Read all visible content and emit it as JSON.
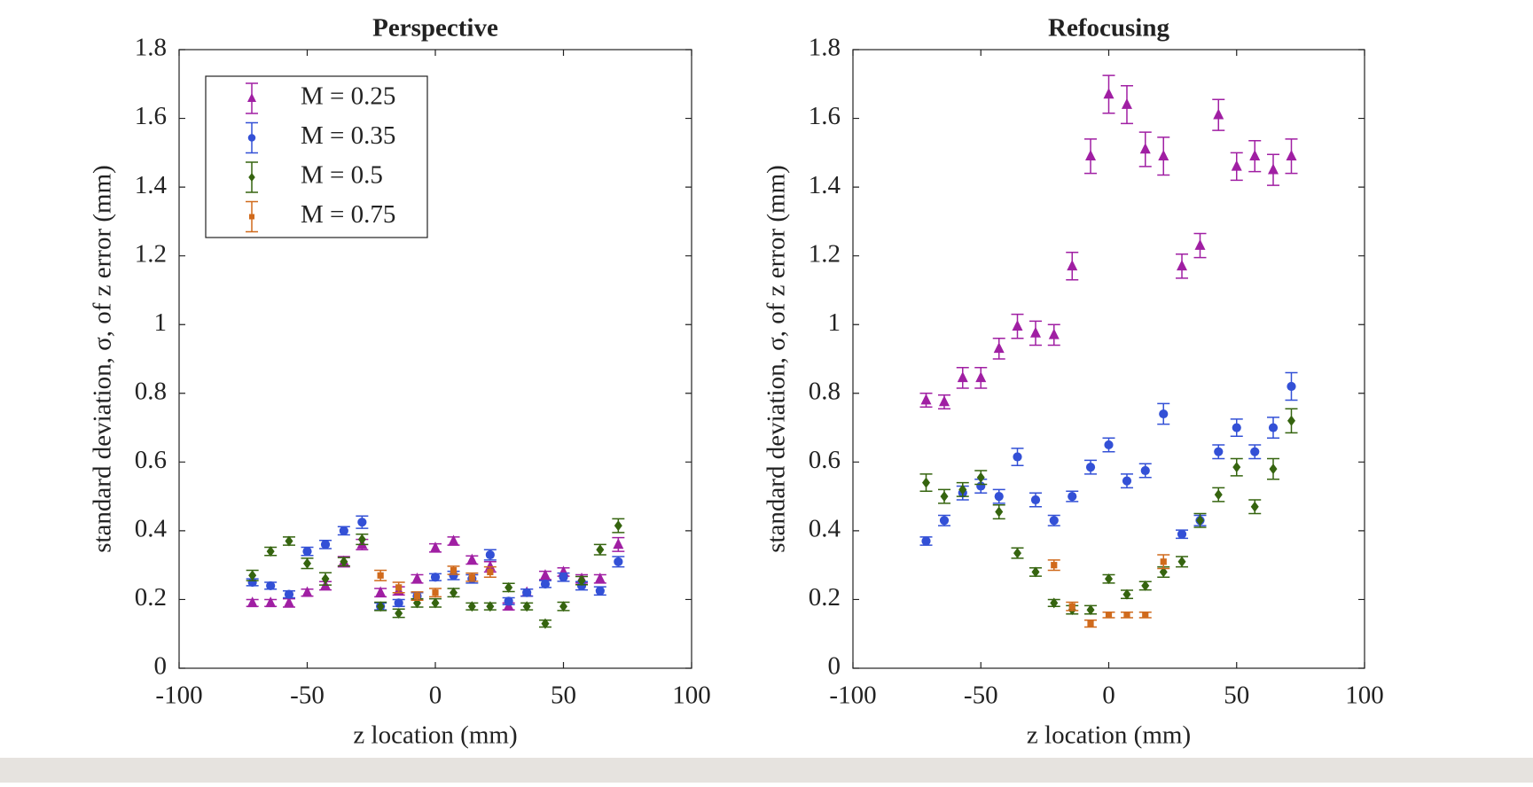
{
  "chart_data": [
    {
      "type": "errorbar",
      "title": "Perspective",
      "xlabel": "z location (mm)",
      "ylabel": "standard deviation, σ, of z error (mm)",
      "xlim": [
        -100,
        100
      ],
      "xticks": [
        -100,
        -50,
        0,
        50,
        100
      ],
      "ylim": [
        0,
        1.8
      ],
      "yticks": [
        0,
        0.2,
        0.4,
        0.6,
        0.8,
        1,
        1.2,
        1.4,
        1.6,
        1.8
      ],
      "legend": "upper left",
      "x": [
        -71.4,
        -64.3,
        -57.1,
        -50,
        -42.9,
        -35.7,
        -28.6,
        -21.4,
        -14.3,
        -7.1,
        0,
        7.1,
        14.3,
        21.4,
        28.6,
        35.7,
        42.9,
        50,
        57.1,
        64.3,
        71.4
      ],
      "series": [
        {
          "name": "M = 0.25",
          "color": "#a01fa3",
          "marker": "triangle",
          "values": [
            0.19,
            0.19,
            0.19,
            0.22,
            0.24,
            0.31,
            0.36,
            0.22,
            0.225,
            0.26,
            0.35,
            0.37,
            0.315,
            0.295,
            0.18,
            0.22,
            0.27,
            0.28,
            0.26,
            0.26,
            0.36
          ],
          "errors": [
            0.01,
            0.01,
            0.012,
            0.01,
            0.012,
            0.015,
            0.015,
            0.012,
            0.012,
            0.012,
            0.012,
            0.012,
            0.012,
            0.015,
            0.01,
            0.01,
            0.012,
            0.012,
            0.012,
            0.012,
            0.02
          ]
        },
        {
          "name": "M = 0.35",
          "color": "#3350d6",
          "marker": "circle",
          "values": [
            0.25,
            0.24,
            0.215,
            0.34,
            0.36,
            0.4,
            0.425,
            0.18,
            0.19,
            0.21,
            0.265,
            0.27,
            0.26,
            0.33,
            0.195,
            0.22,
            0.245,
            0.265,
            0.24,
            0.225,
            0.31
          ],
          "errors": [
            0.01,
            0.01,
            0.01,
            0.012,
            0.012,
            0.012,
            0.018,
            0.01,
            0.01,
            0.01,
            0.01,
            0.012,
            0.012,
            0.015,
            0.01,
            0.01,
            0.01,
            0.012,
            0.012,
            0.012,
            0.015
          ]
        },
        {
          "name": "M = 0.5",
          "color": "#35640f",
          "marker": "diamond",
          "values": [
            0.27,
            0.34,
            0.37,
            0.305,
            0.26,
            0.31,
            0.375,
            0.18,
            0.16,
            0.19,
            0.19,
            0.22,
            0.18,
            0.18,
            0.235,
            0.18,
            0.13,
            0.18,
            0.255,
            0.345,
            0.415
          ],
          "errors": [
            0.015,
            0.012,
            0.012,
            0.015,
            0.018,
            0.012,
            0.015,
            0.012,
            0.012,
            0.012,
            0.012,
            0.012,
            0.01,
            0.01,
            0.012,
            0.01,
            0.01,
            0.012,
            0.012,
            0.015,
            0.02
          ]
        },
        {
          "name": "M = 0.75",
          "color": "#d06a1c",
          "marker": "square",
          "values": [
            null,
            null,
            null,
            null,
            null,
            null,
            null,
            0.27,
            0.235,
            0.21,
            0.22,
            0.285,
            0.265,
            0.28,
            null,
            null,
            null,
            null,
            null,
            null,
            null
          ],
          "errors": [
            null,
            null,
            null,
            null,
            null,
            null,
            null,
            0.015,
            0.015,
            0.012,
            0.012,
            0.012,
            0.012,
            0.015,
            null,
            null,
            null,
            null,
            null,
            null,
            null
          ]
        }
      ]
    },
    {
      "type": "errorbar",
      "title": "Refocusing",
      "xlabel": "z location (mm)",
      "ylabel": "standard deviation, σ, of z error (mm)",
      "xlim": [
        -100,
        100
      ],
      "xticks": [
        -100,
        -50,
        0,
        50,
        100
      ],
      "ylim": [
        0,
        1.8
      ],
      "yticks": [
        0,
        0.2,
        0.4,
        0.6,
        0.8,
        1,
        1.2,
        1.4,
        1.6,
        1.8
      ],
      "x": [
        -71.4,
        -64.3,
        -57.1,
        -50,
        -42.9,
        -35.7,
        -28.6,
        -21.4,
        -14.3,
        -7.1,
        0,
        7.1,
        14.3,
        21.4,
        28.6,
        35.7,
        42.9,
        50,
        57.1,
        64.3,
        71.4
      ],
      "series": [
        {
          "name": "M = 0.25",
          "color": "#a01fa3",
          "marker": "triangle",
          "values": [
            0.78,
            0.775,
            0.845,
            0.845,
            0.93,
            0.995,
            0.975,
            0.97,
            1.17,
            1.49,
            1.67,
            1.64,
            1.51,
            1.49,
            1.17,
            1.23,
            1.61,
            1.46,
            1.49,
            1.45,
            1.49
          ],
          "errors": [
            0.02,
            0.02,
            0.03,
            0.03,
            0.03,
            0.035,
            0.035,
            0.03,
            0.04,
            0.05,
            0.055,
            0.055,
            0.05,
            0.055,
            0.035,
            0.035,
            0.045,
            0.04,
            0.045,
            0.045,
            0.05
          ]
        },
        {
          "name": "M = 0.35",
          "color": "#3350d6",
          "marker": "circle",
          "values": [
            0.37,
            0.43,
            0.51,
            0.53,
            0.5,
            0.615,
            0.49,
            0.43,
            0.5,
            0.585,
            0.65,
            0.545,
            0.575,
            0.74,
            0.39,
            0.43,
            0.63,
            0.7,
            0.63,
            0.7,
            0.82
          ],
          "errors": [
            0.012,
            0.015,
            0.02,
            0.02,
            0.02,
            0.025,
            0.02,
            0.015,
            0.015,
            0.02,
            0.02,
            0.02,
            0.02,
            0.03,
            0.012,
            0.015,
            0.02,
            0.025,
            0.02,
            0.03,
            0.04
          ]
        },
        {
          "name": "M = 0.5",
          "color": "#35640f",
          "marker": "diamond",
          "values": [
            0.54,
            0.5,
            0.52,
            0.555,
            0.455,
            0.335,
            0.28,
            0.19,
            0.17,
            0.17,
            0.26,
            0.215,
            0.24,
            0.28,
            0.31,
            0.43,
            0.505,
            0.585,
            0.47,
            0.58,
            0.72
          ],
          "errors": [
            0.025,
            0.02,
            0.02,
            0.02,
            0.02,
            0.015,
            0.012,
            0.01,
            0.012,
            0.012,
            0.012,
            0.012,
            0.012,
            0.015,
            0.015,
            0.02,
            0.02,
            0.025,
            0.02,
            0.03,
            0.035
          ]
        },
        {
          "name": "M = 0.75",
          "color": "#d06a1c",
          "marker": "square",
          "values": [
            null,
            null,
            null,
            null,
            null,
            null,
            null,
            0.3,
            0.18,
            0.13,
            0.155,
            0.155,
            0.155,
            0.31,
            null,
            null,
            null,
            null,
            null,
            null,
            null
          ],
          "errors": [
            null,
            null,
            null,
            null,
            null,
            null,
            null,
            0.015,
            0.012,
            0.01,
            0.008,
            0.008,
            0.008,
            0.02,
            null,
            null,
            null,
            null,
            null,
            null,
            null
          ]
        }
      ]
    }
  ]
}
